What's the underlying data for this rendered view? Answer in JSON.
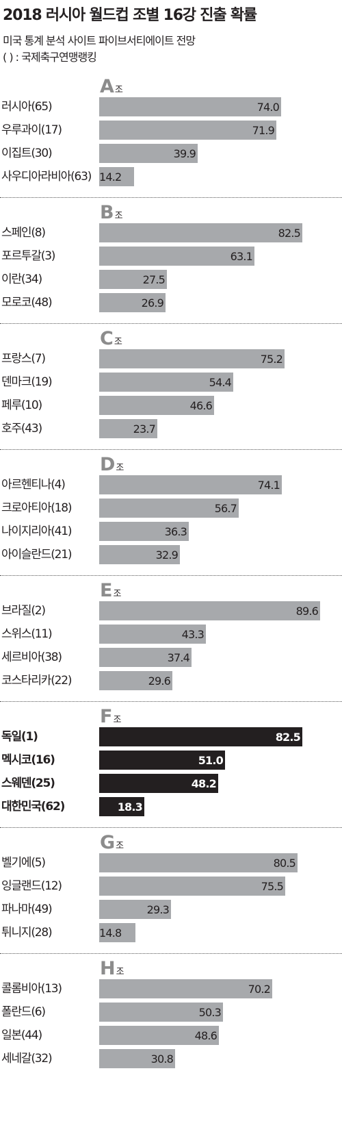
{
  "header": {
    "title": "2018 러시아 월드컵 조별 16강 진출 확률",
    "subtitle": "미국 통계 분석 사이트 파이브서티에이트 전망",
    "note": "( ) : 국제축구연맹랭킹"
  },
  "colors": {
    "bar": "#a7a9ac",
    "highlight_bar": "#231f20",
    "group_letter": "#8c8c8c",
    "text": "#231f20"
  },
  "chart_data": {
    "type": "bar",
    "orientation": "horizontal",
    "title": "2018 러시아 월드컵 조별 16강 진출 확률",
    "subtitle": "미국 통계 분석 사이트 파이브서티에이트 전망",
    "annotation": "( ) : 국제축구연맹랭킹",
    "xlim": [
      0,
      100
    ],
    "grid": false,
    "legend": "none",
    "group_suffix": "조",
    "groups": [
      {
        "name": "A",
        "highlight": false,
        "teams": [
          {
            "label": "러시아(65)",
            "value": 74.0,
            "value_label": "74.0"
          },
          {
            "label": "우루과이(17)",
            "value": 71.9,
            "value_label": "71.9"
          },
          {
            "label": "이집트(30)",
            "value": 39.9,
            "value_label": "39.9"
          },
          {
            "label": "사우디아라비아(63)",
            "value": 14.2,
            "value_label": "14.2"
          }
        ]
      },
      {
        "name": "B",
        "highlight": false,
        "teams": [
          {
            "label": "스페인(8)",
            "value": 82.5,
            "value_label": "82.5"
          },
          {
            "label": "포르투갈(3)",
            "value": 63.1,
            "value_label": "63.1"
          },
          {
            "label": "이란(34)",
            "value": 27.5,
            "value_label": "27.5"
          },
          {
            "label": "모로코(48)",
            "value": 26.9,
            "value_label": "26.9"
          }
        ]
      },
      {
        "name": "C",
        "highlight": false,
        "teams": [
          {
            "label": "프랑스(7)",
            "value": 75.2,
            "value_label": "75.2"
          },
          {
            "label": "덴마크(19)",
            "value": 54.4,
            "value_label": "54.4"
          },
          {
            "label": "페루(10)",
            "value": 46.6,
            "value_label": "46.6"
          },
          {
            "label": "호주(43)",
            "value": 23.7,
            "value_label": "23.7"
          }
        ]
      },
      {
        "name": "D",
        "highlight": false,
        "teams": [
          {
            "label": "아르헨티나(4)",
            "value": 74.1,
            "value_label": "74.1"
          },
          {
            "label": "크로아티아(18)",
            "value": 56.7,
            "value_label": "56.7"
          },
          {
            "label": "나이지리아(41)",
            "value": 36.3,
            "value_label": "36.3"
          },
          {
            "label": "아이슬란드(21)",
            "value": 32.9,
            "value_label": "32.9"
          }
        ]
      },
      {
        "name": "E",
        "highlight": false,
        "teams": [
          {
            "label": "브라질(2)",
            "value": 89.6,
            "value_label": "89.6"
          },
          {
            "label": "스위스(11)",
            "value": 43.3,
            "value_label": "43.3"
          },
          {
            "label": "세르비아(38)",
            "value": 37.4,
            "value_label": "37.4"
          },
          {
            "label": "코스타리카(22)",
            "value": 29.6,
            "value_label": "29.6"
          }
        ]
      },
      {
        "name": "F",
        "highlight": true,
        "teams": [
          {
            "label": "독일(1)",
            "value": 82.5,
            "value_label": "82.5"
          },
          {
            "label": "멕시코(16)",
            "value": 51.0,
            "value_label": "51.0"
          },
          {
            "label": "스웨덴(25)",
            "value": 48.2,
            "value_label": "48.2"
          },
          {
            "label": "대한민국(62)",
            "value": 18.3,
            "value_label": "18.3"
          }
        ]
      },
      {
        "name": "G",
        "highlight": false,
        "teams": [
          {
            "label": "벨기에(5)",
            "value": 80.5,
            "value_label": "80.5"
          },
          {
            "label": "잉글랜드(12)",
            "value": 75.5,
            "value_label": "75.5"
          },
          {
            "label": "파나마(49)",
            "value": 29.3,
            "value_label": "29.3"
          },
          {
            "label": "튀니지(28)",
            "value": 14.8,
            "value_label": "14.8"
          }
        ]
      },
      {
        "name": "H",
        "highlight": false,
        "teams": [
          {
            "label": "콜롬비아(13)",
            "value": 70.2,
            "value_label": "70.2"
          },
          {
            "label": "폴란드(6)",
            "value": 50.3,
            "value_label": "50.3"
          },
          {
            "label": "일본(44)",
            "value": 48.6,
            "value_label": "48.6"
          },
          {
            "label": "세네갈(32)",
            "value": 30.8,
            "value_label": "30.8"
          }
        ]
      }
    ]
  }
}
